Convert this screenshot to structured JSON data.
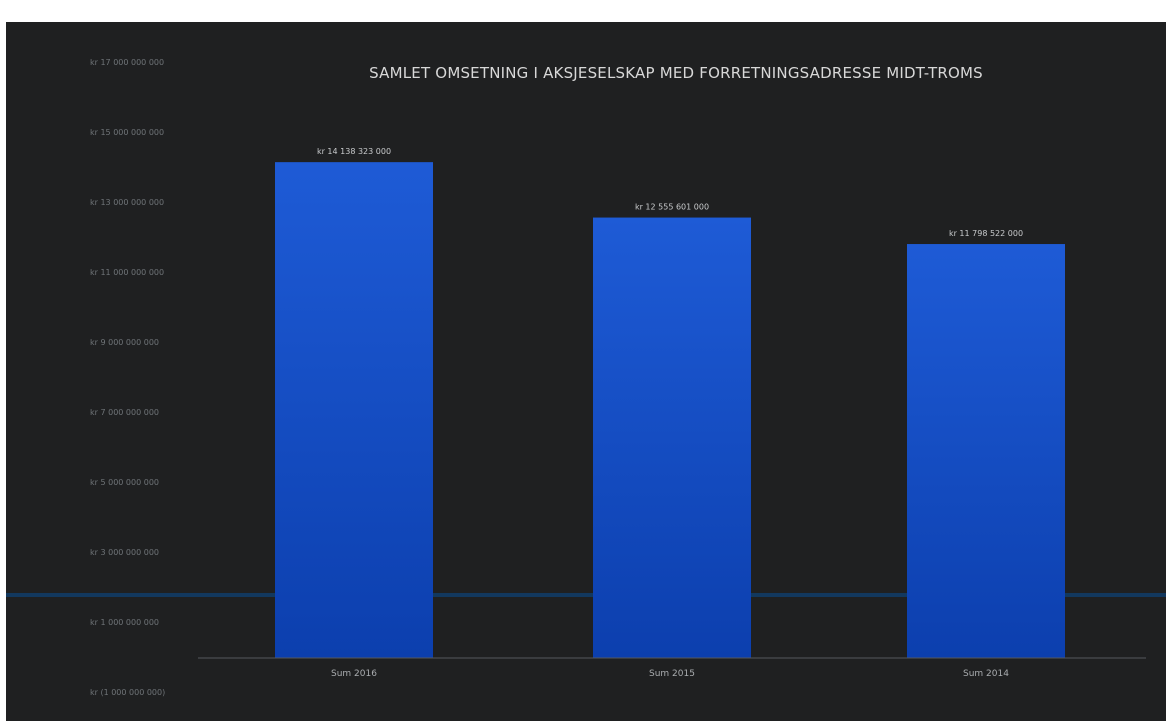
{
  "chart_data": {
    "type": "bar",
    "title": "SAMLET OMSETNING I AKSJESELSKAP MED FORRETNINGSADRESSE MIDT-TROMS",
    "xlabel": "",
    "ylabel": "",
    "categories": [
      "Sum 2016",
      "Sum 2015",
      "Sum 2014"
    ],
    "values": [
      14138323000,
      12555601000,
      11798522000
    ],
    "value_labels": [
      "kr 14 138 323 000",
      "kr 12 555 601 000",
      "kr 11 798 522 000"
    ],
    "y_ticks": [
      {
        "value": 17000000000,
        "label": "kr 17 000 000 000"
      },
      {
        "value": 15000000000,
        "label": "kr 15 000 000 000"
      },
      {
        "value": 13000000000,
        "label": "kr 13 000 000 000"
      },
      {
        "value": 11000000000,
        "label": "kr 11 000 000 000"
      },
      {
        "value": 9000000000,
        "label": "kr 9 000 000 000"
      },
      {
        "value": 7000000000,
        "label": "kr 7 000 000 000"
      },
      {
        "value": 5000000000,
        "label": "kr 5 000 000 000"
      },
      {
        "value": 3000000000,
        "label": "kr 3 000 000 000"
      },
      {
        "value": 1000000000,
        "label": "kr 1 000 000 000"
      },
      {
        "value": -1000000000,
        "label": "kr (1 000 000 000)"
      }
    ],
    "ylim": [
      -1000000000,
      17000000000
    ],
    "grid": false,
    "legend": "none",
    "colors": {
      "background": "#1f2021",
      "bar_top": "#1e5bd6",
      "bar_bottom": "#0c3fae",
      "axis_line": "#55595d",
      "accent_line": "#12385e"
    }
  }
}
